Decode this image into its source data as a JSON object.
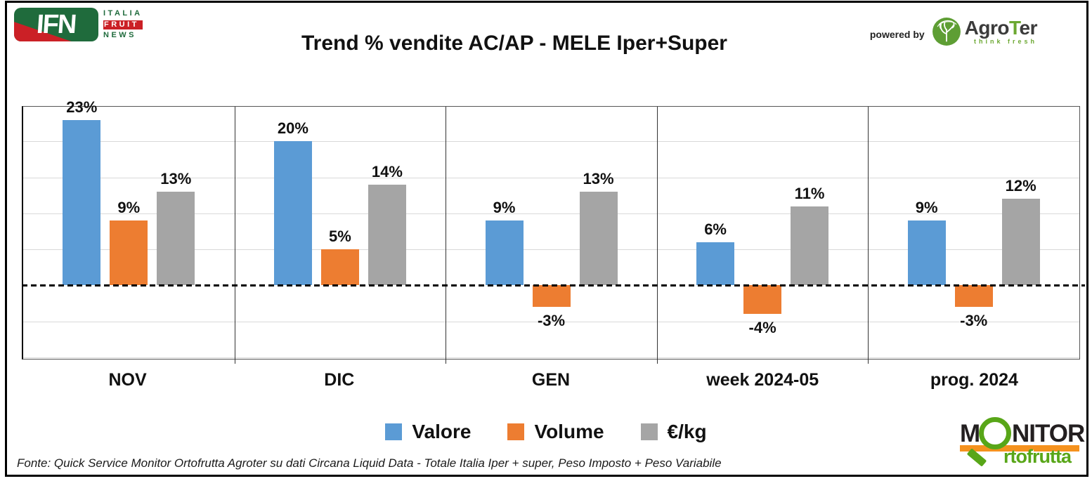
{
  "header": {
    "title": "Trend % vendite AC/AP - MELE Iper+Super",
    "ifn_logo": {
      "abbr": "IFN",
      "line1": "ITALIA",
      "line2": "FRUIT",
      "line3": "NEWS"
    },
    "powered_by": "powered by",
    "agroter_logo": {
      "name_prefix": "Agro",
      "name_t": "T",
      "name_suffix": "er",
      "tagline": "think fresh"
    }
  },
  "chart_data": {
    "type": "bar",
    "title": "Trend % vendite AC/AP - MELE Iper+Super",
    "categories": [
      "NOV",
      "DIC",
      "GEN",
      "week 2024-05",
      "prog. 2024"
    ],
    "series": [
      {
        "name": "Valore",
        "color": "#5B9BD5",
        "values": [
          23,
          20,
          9,
          6,
          9
        ]
      },
      {
        "name": "Volume",
        "color": "#ED7D31",
        "values": [
          9,
          5,
          -3,
          -4,
          -3
        ]
      },
      {
        "name": "€/kg",
        "color": "#A5A5A5",
        "values": [
          13,
          14,
          13,
          11,
          12
        ]
      }
    ],
    "value_suffix": "%",
    "ylim": [
      -10.2,
      24.8
    ],
    "gridline_step": 5,
    "grid": true,
    "zero_line_style": "dashed-black",
    "legend_position": "bottom",
    "colors": {
      "gridline": "#D9D9D9",
      "zero_line": "#000000",
      "group_separator": "#333333"
    }
  },
  "footer": {
    "source": "Fonte: Quick Service Monitor Ortofrutta Agroter su dati Circana Liquid Data - Totale Italia Iper + super, Peso Imposto + Peso Variabile",
    "monitor_logo": {
      "part1": "M",
      "part2": "NITOR",
      "part3": "rtofrutta"
    }
  }
}
